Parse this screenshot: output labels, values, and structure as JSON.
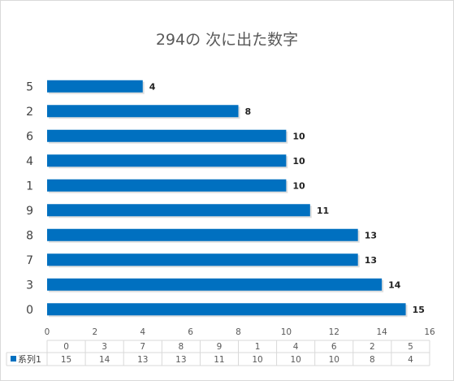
{
  "chart_data": {
    "type": "bar",
    "orientation": "horizontal",
    "title": "294の 次に出た数字",
    "categories": [
      "0",
      "3",
      "7",
      "8",
      "9",
      "1",
      "4",
      "6",
      "2",
      "5"
    ],
    "series": [
      {
        "name": "系列1",
        "values": [
          15,
          14,
          13,
          13,
          11,
          10,
          10,
          10,
          8,
          4
        ]
      }
    ],
    "xlim": [
      0,
      16
    ],
    "xticks": [
      0,
      2,
      4,
      6,
      8,
      10,
      12,
      14,
      16
    ],
    "grid": false,
    "data_table": true,
    "bar_color": "#0070c0"
  }
}
